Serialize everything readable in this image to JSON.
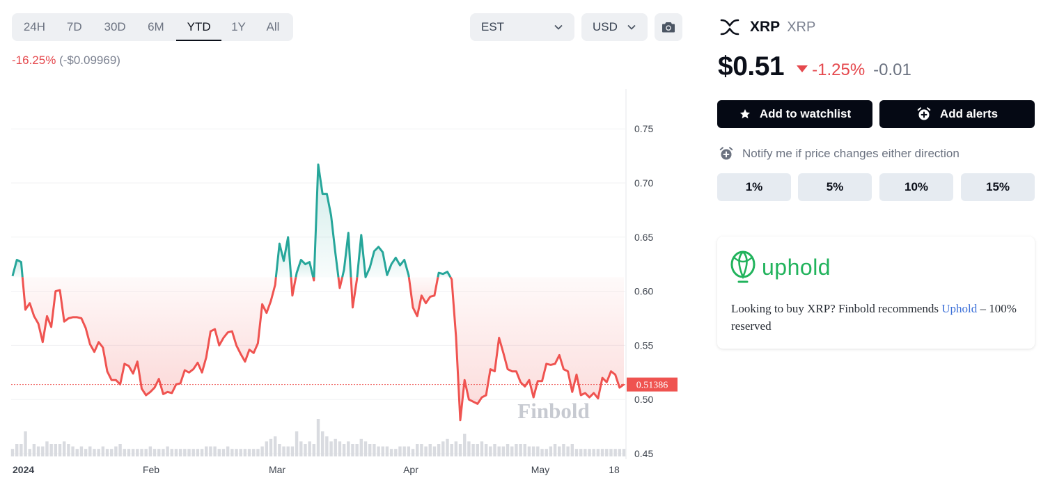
{
  "range_tabs": [
    {
      "label": "24H",
      "active": false
    },
    {
      "label": "7D",
      "active": false
    },
    {
      "label": "30D",
      "active": false
    },
    {
      "label": "6M",
      "active": false
    },
    {
      "label": "YTD",
      "active": true
    },
    {
      "label": "1Y",
      "active": false
    },
    {
      "label": "All",
      "active": false
    }
  ],
  "timezone_select": {
    "value": "EST",
    "icon": "chevron-down-icon"
  },
  "currency_select": {
    "value": "USD",
    "icon": "chevron-down-icon"
  },
  "screenshot_button": {
    "icon": "camera-icon"
  },
  "change": {
    "percent": "-16.25%",
    "absolute": "(-$0.09969)"
  },
  "coin": {
    "name": "XRP",
    "symbol": "XRP",
    "icon": "xrp-logo-icon"
  },
  "price": {
    "value": "$0.51",
    "change_percent": "-1.25%",
    "change_abs": "-0.01",
    "direction_icon": "triangle-down-icon"
  },
  "buttons": {
    "watchlist": "Add to watchlist",
    "alerts": "Add alerts"
  },
  "notify": {
    "text": "Notify me if price changes either direction",
    "icon": "alarm-plus-icon"
  },
  "alert_options": [
    "1%",
    "5%",
    "10%",
    "15%"
  ],
  "ad": {
    "brand": "uphold",
    "text_before": "Looking to buy XRP? Finbold recommends ",
    "link": "Uphold",
    "text_after": " – 100% reserved"
  },
  "colors": {
    "up": "#26a69a",
    "down": "#ef5350",
    "accent_dark": "#050914",
    "brand_green": "#21b35c",
    "negative_text": "#e5484d"
  },
  "chart_data": {
    "type": "line",
    "title": "",
    "xlabel": "",
    "ylabel": "",
    "ylim": [
      0.45,
      0.785
    ],
    "y_ticks": [
      "0.75",
      "0.70",
      "0.65",
      "0.60",
      "0.55",
      "0.50",
      "0.45"
    ],
    "x_ticks": [
      "2024",
      "Feb",
      "Mar",
      "Apr",
      "May",
      "18"
    ],
    "grid": true,
    "baseline": 0.613,
    "current_price_label": "0.51386",
    "current_price": 0.51386,
    "watermark": "Finbold",
    "series": [
      {
        "values": [
          0.614,
          0.629,
          0.627,
          0.583,
          0.589,
          0.577,
          0.57,
          0.553,
          0.577,
          0.567,
          0.6,
          0.601,
          0.572,
          0.575,
          0.576,
          0.576,
          0.575,
          0.566,
          0.551,
          0.544,
          0.553,
          0.548,
          0.526,
          0.518,
          0.518,
          0.514,
          0.533,
          0.531,
          0.524,
          0.535,
          0.51,
          0.504,
          0.507,
          0.511,
          0.519,
          0.505,
          0.507,
          0.506,
          0.514,
          0.515,
          0.527,
          0.525,
          0.528,
          0.534,
          0.525,
          0.539,
          0.563,
          0.565,
          0.55,
          0.557,
          0.562,
          0.563,
          0.55,
          0.542,
          0.535,
          0.546,
          0.543,
          0.552,
          0.588,
          0.58,
          0.591,
          0.606,
          0.644,
          0.628,
          0.65,
          0.596,
          0.617,
          0.629,
          0.625,
          0.627,
          0.61,
          0.717,
          0.69,
          0.69,
          0.67,
          0.635,
          0.603,
          0.62,
          0.654,
          0.585,
          0.611,
          0.652,
          0.613,
          0.622,
          0.637,
          0.641,
          0.636,
          0.615,
          0.625,
          0.631,
          0.624,
          0.629,
          0.615,
          0.585,
          0.577,
          0.596,
          0.589,
          0.595,
          0.596,
          0.617,
          0.616,
          0.618,
          0.611,
          0.558,
          0.481,
          0.518,
          0.5,
          0.498,
          0.496,
          0.502,
          0.504,
          0.528,
          0.526,
          0.557,
          0.543,
          0.528,
          0.526,
          0.526,
          0.516,
          0.512,
          0.518,
          0.502,
          0.517,
          0.517,
          0.533,
          0.532,
          0.533,
          0.541,
          0.528,
          0.526,
          0.507,
          0.523,
          0.504,
          0.506,
          0.502,
          0.506,
          0.501,
          0.52,
          0.516,
          0.526,
          0.523,
          0.511,
          0.514
        ]
      }
    ],
    "volume": [
      3,
      5,
      5,
      10,
      3,
      5,
      4,
      4,
      6,
      5,
      5,
      5,
      6,
      5,
      4,
      3,
      4,
      3,
      4,
      3,
      3,
      4,
      3,
      3,
      4,
      5,
      3,
      3,
      3,
      3,
      3,
      3,
      4,
      3,
      3,
      3,
      4,
      3,
      3,
      3,
      3,
      3,
      3,
      3,
      3,
      4,
      4,
      4,
      3,
      3,
      4,
      3,
      3,
      3,
      3,
      3,
      3,
      3,
      4,
      6,
      7,
      8,
      5,
      4,
      4,
      4,
      10,
      6,
      5,
      6,
      5,
      15,
      10,
      8,
      6,
      7,
      6,
      5,
      6,
      5,
      5,
      7,
      6,
      5,
      5,
      4,
      4,
      4,
      3,
      3,
      4,
      4,
      4,
      3,
      5,
      5,
      4,
      5,
      4,
      5,
      6,
      7,
      5,
      6,
      5,
      9,
      6,
      5,
      5,
      6,
      5,
      4,
      5,
      4,
      4,
      5,
      4,
      5,
      5,
      5,
      4,
      4,
      4,
      3,
      3,
      4,
      5,
      4,
      5,
      4,
      5,
      3,
      3,
      3,
      3,
      3,
      3,
      3,
      3,
      3,
      3,
      3,
      3
    ]
  }
}
